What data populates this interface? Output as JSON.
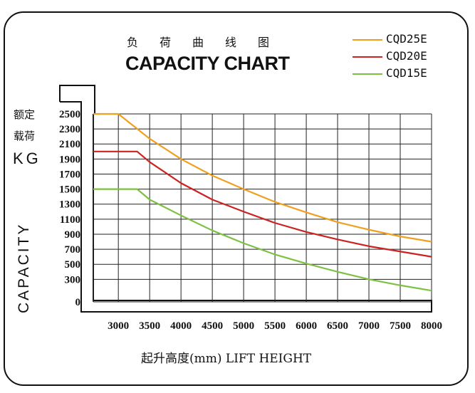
{
  "chart_data": {
    "type": "line",
    "title_cn": "负荷曲线图",
    "title": "CAPACITY CHART",
    "ylabel_cn_line1": "额定",
    "ylabel_cn_line2": "载荷",
    "ylabel_unit": "KG",
    "ylabel": "CAPACITY",
    "xlabel": "起升高度(mm)  LIFT HEIGHT",
    "x_ticks": [
      3000,
      3500,
      4000,
      4500,
      5000,
      5500,
      6000,
      6500,
      7000,
      7500,
      8000
    ],
    "y_ticks": [
      2500,
      2300,
      2100,
      1900,
      1700,
      1500,
      1300,
      1100,
      900,
      700,
      500,
      300,
      0
    ],
    "xlim": [
      2600,
      8000
    ],
    "ylim": [
      0,
      2500
    ],
    "grid": true,
    "legend_position": "top-right",
    "series": [
      {
        "name": "CQD25E",
        "color": "#f0a020",
        "x": [
          2600,
          3000,
          3500,
          4000,
          4500,
          5000,
          5500,
          6000,
          6500,
          7000,
          7500,
          8000
        ],
        "values": [
          2500,
          2500,
          2170,
          1900,
          1680,
          1500,
          1330,
          1190,
          1060,
          960,
          870,
          800
        ]
      },
      {
        "name": "CQD20E",
        "color": "#cc2222",
        "x": [
          2600,
          3000,
          3300,
          3500,
          4000,
          4500,
          5000,
          5500,
          6000,
          6500,
          7000,
          7500,
          8000
        ],
        "values": [
          2000,
          2000,
          2000,
          1860,
          1580,
          1360,
          1200,
          1050,
          930,
          830,
          740,
          670,
          600
        ]
      },
      {
        "name": "CQD15E",
        "color": "#7dc142",
        "x": [
          2600,
          3000,
          3300,
          3500,
          4000,
          4500,
          5000,
          5500,
          6000,
          6500,
          7000,
          7500,
          8000
        ],
        "values": [
          1500,
          1500,
          1500,
          1360,
          1150,
          950,
          780,
          630,
          510,
          400,
          300,
          220,
          150
        ]
      }
    ]
  }
}
